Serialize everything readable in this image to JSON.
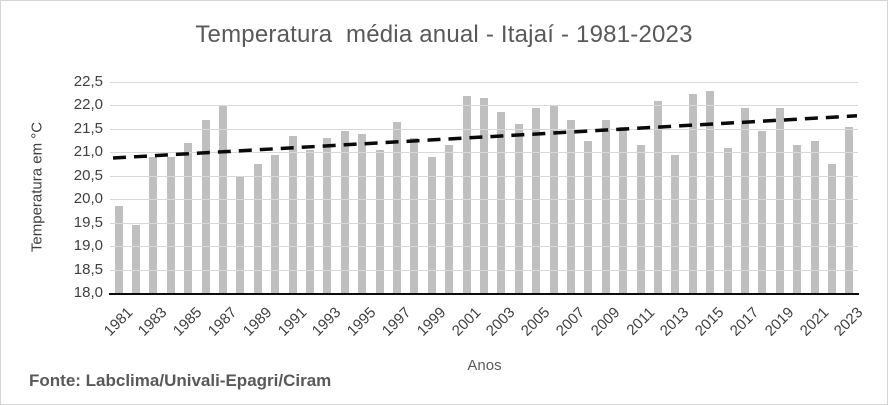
{
  "chart_data": {
    "type": "bar",
    "title": "Temperatura  média anual - Itajaí - 1981-2023",
    "xlabel": "Anos",
    "ylabel": "Temperatura em °C",
    "source_note": "Fonte: Labclima/Univali-Epagri/Ciram",
    "ylim": [
      18.0,
      22.5
    ],
    "ytick_step": 0.5,
    "ytick_labels": [
      "22,5",
      "22,0",
      "21,5",
      "21,0",
      "20,5",
      "20,0",
      "19,5",
      "19,0",
      "18,5",
      "18,0"
    ],
    "xtick_labels": [
      "1981",
      "1983",
      "1985",
      "1987",
      "1989",
      "1991",
      "1993",
      "1995",
      "1997",
      "1999",
      "2001",
      "2003",
      "2005",
      "2007",
      "2009",
      "2011",
      "2013",
      "2015",
      "2017",
      "2019",
      "2021",
      "2023"
    ],
    "categories": [
      1981,
      1982,
      1983,
      1984,
      1985,
      1986,
      1987,
      1988,
      1989,
      1990,
      1991,
      1992,
      1993,
      1994,
      1995,
      1996,
      1997,
      1998,
      1999,
      2000,
      2001,
      2002,
      2003,
      2004,
      2005,
      2006,
      2007,
      2008,
      2009,
      2010,
      2011,
      2012,
      2013,
      2014,
      2015,
      2016,
      2017,
      2018,
      2019,
      2020,
      2021,
      2022,
      2023
    ],
    "values": [
      19.85,
      19.45,
      20.9,
      20.9,
      21.2,
      21.7,
      22.0,
      20.5,
      20.75,
      20.95,
      21.35,
      21.05,
      21.3,
      21.45,
      21.4,
      21.05,
      21.65,
      21.3,
      20.9,
      21.15,
      22.2,
      22.15,
      21.85,
      21.6,
      21.95,
      22.0,
      21.7,
      21.25,
      21.7,
      21.55,
      21.15,
      22.1,
      20.95,
      22.25,
      22.3,
      21.1,
      21.95,
      21.45,
      21.95,
      21.15,
      21.25,
      20.75,
      21.55
    ],
    "trendline": {
      "type": "linear",
      "style": "dashed",
      "start_value": 20.88,
      "end_value": 21.78,
      "color": "#0a0a0a"
    },
    "legend": "none",
    "grid": "horizontal",
    "bar_color": "#BFBFBF",
    "gridline_color": "#D9D9D9",
    "axis_line_color": "#0d0d0d",
    "title_color": "#595959",
    "tick_color": "#404040"
  }
}
